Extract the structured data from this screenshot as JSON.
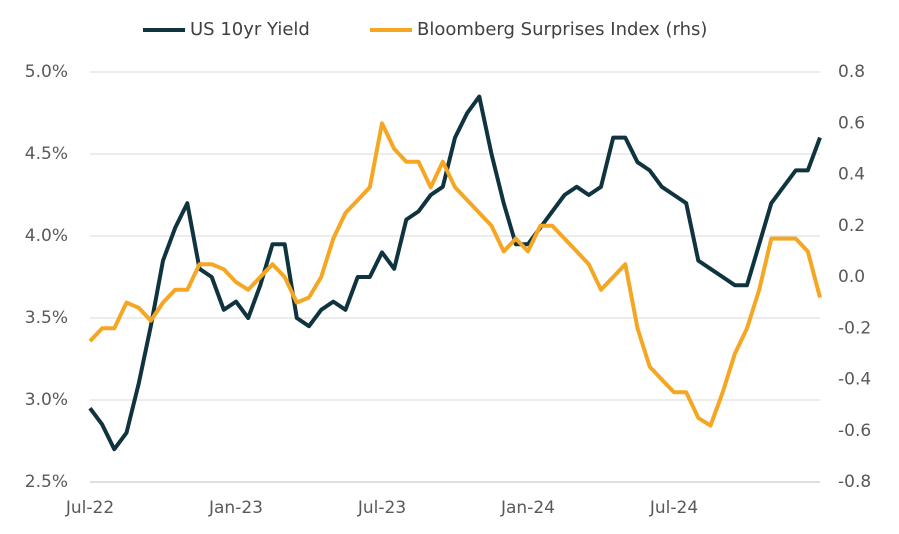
{
  "chart_data": {
    "type": "line",
    "categories": [
      "Jul-22",
      null,
      null,
      null,
      null,
      null,
      null,
      null,
      null,
      null,
      null,
      null,
      "Jan-23",
      null,
      null,
      null,
      null,
      null,
      null,
      null,
      null,
      null,
      null,
      null,
      "Jul-23",
      null,
      null,
      null,
      null,
      null,
      null,
      null,
      null,
      null,
      null,
      null,
      "Jan-24",
      null,
      null,
      null,
      null,
      null,
      null,
      null,
      null,
      null,
      null,
      null,
      "Jul-24",
      null,
      null,
      null,
      null,
      null,
      null,
      null,
      null,
      null,
      null,
      null,
      null
    ],
    "series": [
      {
        "name": "US 10yr Yield",
        "color": "#10343f",
        "values": [
          2.95,
          2.85,
          2.7,
          2.8,
          3.1,
          3.45,
          3.85,
          4.05,
          4.2,
          3.8,
          3.75,
          3.55,
          3.6,
          3.5,
          3.7,
          3.95,
          3.95,
          3.5,
          3.45,
          3.55,
          3.6,
          3.55,
          3.75,
          3.75,
          3.9,
          3.8,
          4.1,
          4.15,
          4.25,
          4.3,
          4.6,
          4.75,
          4.85,
          4.5,
          4.2,
          3.95,
          3.95,
          4.05,
          4.15,
          4.25,
          4.3,
          4.25,
          4.3,
          4.6,
          4.6,
          4.45,
          4.4,
          4.3,
          4.25,
          4.2,
          3.85,
          3.8,
          3.75,
          3.7,
          3.7,
          3.95,
          4.2,
          4.3,
          4.4,
          4.4,
          4.6
        ]
      },
      {
        "name": "Bloomberg Surprises Index (rhs)",
        "color": "#f5a623",
        "axis": "y2",
        "values": [
          -0.25,
          -0.2,
          -0.2,
          -0.1,
          -0.12,
          -0.17,
          -0.1,
          -0.05,
          -0.05,
          0.05,
          0.05,
          0.03,
          -0.02,
          -0.05,
          0.0,
          0.05,
          0.0,
          -0.1,
          -0.08,
          0.0,
          0.15,
          0.25,
          0.3,
          0.35,
          0.6,
          0.5,
          0.45,
          0.45,
          0.35,
          0.45,
          0.35,
          0.3,
          0.25,
          0.2,
          0.1,
          0.15,
          0.1,
          0.2,
          0.2,
          0.15,
          0.1,
          0.05,
          -0.05,
          0.0,
          0.05,
          -0.2,
          -0.35,
          -0.4,
          -0.45,
          -0.45,
          -0.55,
          -0.58,
          -0.45,
          -0.3,
          -0.2,
          -0.05,
          0.15,
          0.15,
          0.15,
          0.1,
          -0.08
        ]
      }
    ],
    "ylim": [
      2.5,
      5.0
    ],
    "yticks": [
      {
        "value": 2.5,
        "label": "2.5%"
      },
      {
        "value": 3.0,
        "label": "3.0%"
      },
      {
        "value": 3.5,
        "label": "3.5%"
      },
      {
        "value": 4.0,
        "label": "4.0%"
      },
      {
        "value": 4.5,
        "label": "4.5%"
      },
      {
        "value": 5.0,
        "label": "5.0%"
      }
    ],
    "y2lim": [
      -0.8,
      0.8
    ],
    "y2ticks": [
      -0.8,
      -0.6,
      -0.4,
      -0.2,
      {
        "value": 0,
        "label": "0.0"
      },
      0.2,
      0.4,
      0.6,
      0.8
    ],
    "grid": true,
    "legend": "top"
  }
}
